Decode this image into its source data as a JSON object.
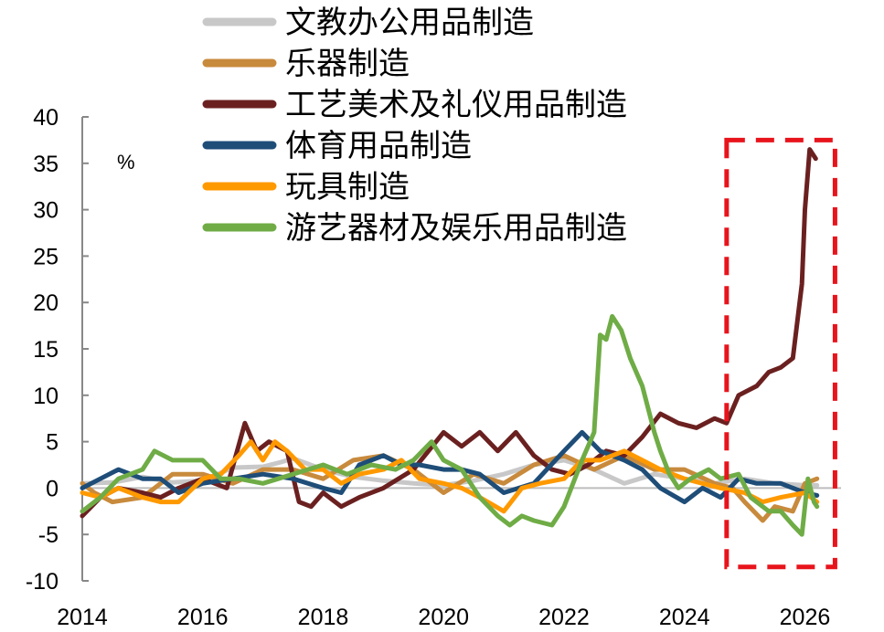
{
  "chart_data": {
    "type": "line",
    "unit_label": "%",
    "xlim": [
      2014,
      2026.6
    ],
    "ylim": [
      -10,
      40
    ],
    "x_ticks": [
      "2014",
      "2016",
      "2018",
      "2020",
      "2022",
      "2024",
      "2026"
    ],
    "y_ticks": [
      "40",
      "35",
      "30",
      "25",
      "20",
      "15",
      "10",
      "5",
      "0",
      "-5",
      "-10"
    ],
    "grid": false,
    "legend_position": "top",
    "zero_line": true,
    "highlight_box": {
      "x_range": [
        2024.7,
        2026.5
      ],
      "y_range": [
        -8.5,
        37.5
      ],
      "color": "#e8141c",
      "style": "dashed"
    },
    "series": [
      {
        "name": "文教办公用品制造",
        "color": "#c8c8c8",
        "points": [
          [
            2014,
            0.5
          ],
          [
            2014.5,
            0.6
          ],
          [
            2015,
            1.2
          ],
          [
            2015.5,
            0.6
          ],
          [
            2016,
            0.8
          ],
          [
            2016.5,
            2.2
          ],
          [
            2017,
            2.3
          ],
          [
            2017.3,
            2.8
          ],
          [
            2017.5,
            3.2
          ],
          [
            2018,
            2
          ],
          [
            2018.5,
            1.2
          ],
          [
            2019,
            0.8
          ],
          [
            2019.5,
            0.5
          ],
          [
            2020,
            0.3
          ],
          [
            2020.5,
            0.8
          ],
          [
            2021,
            1.5
          ],
          [
            2021.5,
            2.5
          ],
          [
            2022,
            3
          ],
          [
            2022.5,
            2
          ],
          [
            2023,
            0.5
          ],
          [
            2023.5,
            1.5
          ],
          [
            2024,
            1
          ],
          [
            2024.5,
            0.5
          ],
          [
            2025,
            1
          ],
          [
            2025.5,
            0.5
          ],
          [
            2026,
            0.3
          ],
          [
            2026.2,
            0.3
          ]
        ]
      },
      {
        "name": "乐器制造",
        "color": "#c88a3c",
        "points": [
          [
            2014,
            0.5
          ],
          [
            2014.2,
            -0.5
          ],
          [
            2014.5,
            -1.5
          ],
          [
            2015,
            -1
          ],
          [
            2015.5,
            1.5
          ],
          [
            2016,
            1.5
          ],
          [
            2016.5,
            0.5
          ],
          [
            2017,
            2
          ],
          [
            2017.5,
            2
          ],
          [
            2018,
            1
          ],
          [
            2018.5,
            3
          ],
          [
            2019,
            3.5
          ],
          [
            2019.5,
            2
          ],
          [
            2020,
            -0.5
          ],
          [
            2020.5,
            1.5
          ],
          [
            2021,
            0.5
          ],
          [
            2021.5,
            2.5
          ],
          [
            2022,
            3.5
          ],
          [
            2022.5,
            2
          ],
          [
            2023,
            3.5
          ],
          [
            2023.5,
            2
          ],
          [
            2024,
            2
          ],
          [
            2024.5,
            0.5
          ],
          [
            2024.8,
            0
          ],
          [
            2025,
            -1.5
          ],
          [
            2025.3,
            -3.5
          ],
          [
            2025.5,
            -2
          ],
          [
            2025.8,
            -2.5
          ],
          [
            2026,
            0.5
          ],
          [
            2026.2,
            1
          ]
        ]
      },
      {
        "name": "工艺美术及礼仪用品制造",
        "color": "#6b2020",
        "points": [
          [
            2014,
            -3
          ],
          [
            2014.3,
            -1
          ],
          [
            2014.6,
            0
          ],
          [
            2015,
            -0.5
          ],
          [
            2015.3,
            -1
          ],
          [
            2015.6,
            0
          ],
          [
            2016,
            1
          ],
          [
            2016.4,
            0
          ],
          [
            2016.7,
            7
          ],
          [
            2016.9,
            4
          ],
          [
            2017.1,
            5
          ],
          [
            2017.4,
            4
          ],
          [
            2017.6,
            -1.5
          ],
          [
            2017.8,
            -2
          ],
          [
            2018,
            -0.5
          ],
          [
            2018.3,
            -2
          ],
          [
            2018.6,
            -1
          ],
          [
            2019,
            0
          ],
          [
            2019.5,
            2
          ],
          [
            2020,
            6
          ],
          [
            2020.3,
            4.5
          ],
          [
            2020.6,
            6
          ],
          [
            2020.9,
            4
          ],
          [
            2021.2,
            6
          ],
          [
            2021.5,
            3.5
          ],
          [
            2021.8,
            2
          ],
          [
            2022.1,
            1.5
          ],
          [
            2022.4,
            2.5
          ],
          [
            2022.7,
            4
          ],
          [
            2023,
            3.5
          ],
          [
            2023.3,
            5.5
          ],
          [
            2023.6,
            8
          ],
          [
            2023.9,
            7
          ],
          [
            2024.2,
            6.5
          ],
          [
            2024.5,
            7.5
          ],
          [
            2024.7,
            7
          ],
          [
            2024.9,
            10
          ],
          [
            2025.2,
            11
          ],
          [
            2025.4,
            12.5
          ],
          [
            2025.6,
            13
          ],
          [
            2025.8,
            14
          ],
          [
            2025.95,
            22
          ],
          [
            2026,
            30
          ],
          [
            2026.08,
            36.5
          ],
          [
            2026.18,
            35.5
          ]
        ]
      },
      {
        "name": "体育用品制造",
        "color": "#1e4d78",
        "points": [
          [
            2014,
            0
          ],
          [
            2014.3,
            1
          ],
          [
            2014.6,
            2
          ],
          [
            2015,
            1
          ],
          [
            2015.3,
            1
          ],
          [
            2015.6,
            -0.5
          ],
          [
            2016,
            0.5
          ],
          [
            2016.5,
            1
          ],
          [
            2017,
            1.5
          ],
          [
            2017.5,
            1
          ],
          [
            2018,
            0
          ],
          [
            2018.3,
            -0.5
          ],
          [
            2018.6,
            2.5
          ],
          [
            2019,
            3.5
          ],
          [
            2019.3,
            2.5
          ],
          [
            2019.6,
            2.5
          ],
          [
            2020,
            2
          ],
          [
            2020.3,
            2
          ],
          [
            2020.6,
            1.5
          ],
          [
            2021,
            -0.5
          ],
          [
            2021.5,
            0.5
          ],
          [
            2022,
            4
          ],
          [
            2022.3,
            6
          ],
          [
            2022.6,
            4
          ],
          [
            2023,
            3
          ],
          [
            2023.3,
            2
          ],
          [
            2023.6,
            0
          ],
          [
            2024,
            -1.5
          ],
          [
            2024.3,
            0
          ],
          [
            2024.6,
            -1
          ],
          [
            2024.9,
            1
          ],
          [
            2025.2,
            0.5
          ],
          [
            2025.6,
            0.5
          ],
          [
            2026,
            -0.5
          ],
          [
            2026.2,
            -0.8
          ]
        ]
      },
      {
        "name": "玩具制造",
        "color": "#ff9900",
        "points": [
          [
            2014,
            -0.5
          ],
          [
            2014.3,
            -1
          ],
          [
            2014.6,
            0
          ],
          [
            2015,
            -1
          ],
          [
            2015.3,
            -1.5
          ],
          [
            2015.6,
            -1.5
          ],
          [
            2016,
            1
          ],
          [
            2016.3,
            1.5
          ],
          [
            2016.6,
            3.5
          ],
          [
            2016.8,
            5
          ],
          [
            2017,
            3
          ],
          [
            2017.2,
            5
          ],
          [
            2017.4,
            4
          ],
          [
            2017.7,
            2
          ],
          [
            2018,
            2
          ],
          [
            2018.3,
            0.5
          ],
          [
            2018.6,
            1.5
          ],
          [
            2019,
            2
          ],
          [
            2019.3,
            3
          ],
          [
            2019.6,
            1
          ],
          [
            2020,
            0.5
          ],
          [
            2020.3,
            0
          ],
          [
            2020.6,
            -1
          ],
          [
            2021,
            -2.5
          ],
          [
            2021.3,
            0
          ],
          [
            2021.6,
            0.5
          ],
          [
            2022,
            1
          ],
          [
            2022.3,
            3
          ],
          [
            2022.6,
            3
          ],
          [
            2023,
            4
          ],
          [
            2023.3,
            3
          ],
          [
            2023.6,
            2
          ],
          [
            2024,
            1
          ],
          [
            2024.3,
            0.5
          ],
          [
            2024.6,
            0
          ],
          [
            2025,
            -0.5
          ],
          [
            2025.3,
            -1.5
          ],
          [
            2025.6,
            -1
          ],
          [
            2026,
            -0.5
          ],
          [
            2026.2,
            -1.5
          ]
        ]
      },
      {
        "name": "游艺器材及娱乐用品制造",
        "color": "#6fac46",
        "points": [
          [
            2014,
            -2.5
          ],
          [
            2014.3,
            -1
          ],
          [
            2014.6,
            1
          ],
          [
            2015,
            2
          ],
          [
            2015.2,
            4
          ],
          [
            2015.5,
            3
          ],
          [
            2016,
            3
          ],
          [
            2016.3,
            1
          ],
          [
            2016.6,
            1
          ],
          [
            2017,
            0.5
          ],
          [
            2017.5,
            1.5
          ],
          [
            2018,
            2.5
          ],
          [
            2018.4,
            1.5
          ],
          [
            2018.8,
            2.5
          ],
          [
            2019.2,
            2
          ],
          [
            2019.5,
            3
          ],
          [
            2019.8,
            5
          ],
          [
            2020,
            3
          ],
          [
            2020.3,
            2
          ],
          [
            2020.6,
            -1
          ],
          [
            2020.9,
            -3
          ],
          [
            2021.1,
            -4
          ],
          [
            2021.3,
            -3
          ],
          [
            2021.5,
            -3.5
          ],
          [
            2021.8,
            -4
          ],
          [
            2022,
            -2
          ],
          [
            2022.3,
            3
          ],
          [
            2022.5,
            6
          ],
          [
            2022.6,
            16.5
          ],
          [
            2022.7,
            16
          ],
          [
            2022.8,
            18.5
          ],
          [
            2022.95,
            17
          ],
          [
            2023.1,
            14
          ],
          [
            2023.3,
            11
          ],
          [
            2023.5,
            6
          ],
          [
            2023.6,
            4
          ],
          [
            2023.75,
            1.5
          ],
          [
            2023.9,
            0
          ],
          [
            2024.1,
            1
          ],
          [
            2024.4,
            2
          ],
          [
            2024.6,
            1
          ],
          [
            2024.9,
            1.5
          ],
          [
            2025.1,
            -1
          ],
          [
            2025.4,
            -2.5
          ],
          [
            2025.6,
            -2.5
          ],
          [
            2025.8,
            -4
          ],
          [
            2025.95,
            -5
          ],
          [
            2026.05,
            1
          ],
          [
            2026.15,
            -1.5
          ],
          [
            2026.2,
            -2
          ]
        ]
      }
    ]
  }
}
